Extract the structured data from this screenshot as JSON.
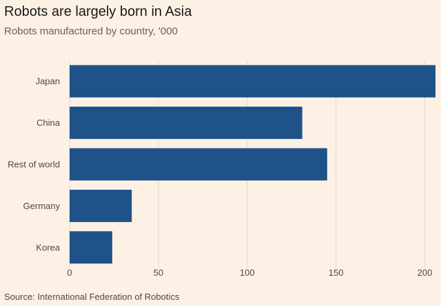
{
  "title": "Robots are largely born in Asia",
  "subtitle": "Robots manufactured by country, '000",
  "source": "Source: International Federation of Robotics",
  "colors": {
    "bar": "#1f5289",
    "background": "#fdf1e5",
    "grid": "#e3d8cd",
    "axis_text": "#4d4845"
  },
  "chart_data": {
    "type": "bar",
    "orientation": "horizontal",
    "title": "Robots are largely born in Asia",
    "subtitle": "Robots manufactured by country, '000",
    "categories": [
      "Japan",
      "China",
      "Rest of world",
      "Germany",
      "Korea"
    ],
    "values": [
      206,
      131,
      145,
      35,
      24
    ],
    "xlim": [
      0,
      206
    ],
    "xticks": [
      0,
      50,
      100,
      150,
      200
    ],
    "xtick_labels": [
      "0",
      "50",
      "100",
      "150",
      "200"
    ],
    "grid": true,
    "legend": "none"
  }
}
